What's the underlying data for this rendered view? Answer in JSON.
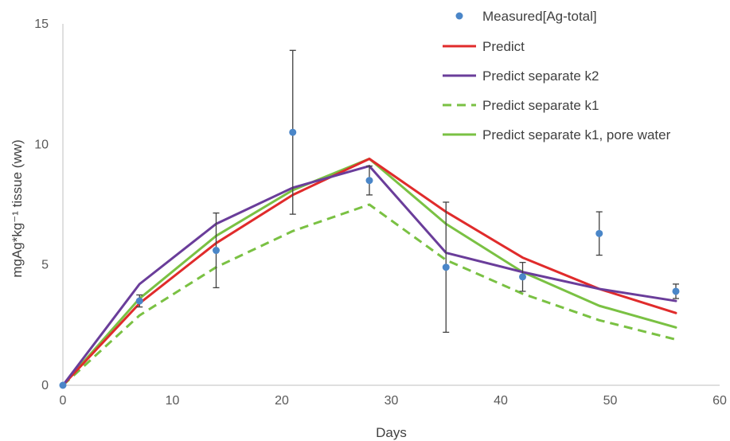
{
  "chart_data": {
    "type": "line",
    "title": "",
    "xlabel": "Days",
    "ylabel": "mgAg*kg⁻¹ tissue (ww)",
    "xlim": [
      0,
      60
    ],
    "ylim": [
      0,
      15
    ],
    "xticks": [
      0,
      10,
      20,
      30,
      40,
      50,
      60
    ],
    "yticks": [
      0,
      5,
      10,
      15
    ],
    "grid": false,
    "legend_position": "top-right",
    "measured": {
      "name": "Measured[Ag-total]",
      "color": "#4a86c8",
      "points": [
        {
          "x": 0,
          "y": 0,
          "err": 0
        },
        {
          "x": 7,
          "y": 3.5,
          "err": 0.25
        },
        {
          "x": 14,
          "y": 5.6,
          "err": 1.55
        },
        {
          "x": 21,
          "y": 10.5,
          "err": 3.4
        },
        {
          "x": 28,
          "y": 8.5,
          "err": 0.6
        },
        {
          "x": 35,
          "y": 4.9,
          "err": 2.7
        },
        {
          "x": 42,
          "y": 4.5,
          "err": 0.6
        },
        {
          "x": 49,
          "y": 6.3,
          "err": 0.9
        },
        {
          "x": 56,
          "y": 3.9,
          "err": 0.3
        }
      ]
    },
    "series": [
      {
        "name": "Predict",
        "color": "#e02b2b",
        "dash": "solid",
        "x": [
          0,
          7,
          14,
          21,
          28,
          35,
          42,
          49,
          56
        ],
        "values": [
          0,
          3.4,
          5.9,
          7.9,
          9.4,
          7.2,
          5.3,
          4.0,
          3.0
        ]
      },
      {
        "name": "Predict separate k2",
        "color": "#6a3d9a",
        "dash": "solid",
        "x": [
          0,
          7,
          14,
          21,
          28,
          35,
          42,
          49,
          56
        ],
        "values": [
          0,
          4.2,
          6.7,
          8.2,
          9.1,
          5.5,
          4.7,
          4.0,
          3.5
        ]
      },
      {
        "name": "Predict separate k1",
        "color": "#7ac143",
        "dash": "dashed",
        "x": [
          0,
          7,
          14,
          21,
          28,
          35,
          42,
          49,
          56
        ],
        "values": [
          0,
          2.9,
          4.9,
          6.4,
          7.5,
          5.2,
          3.8,
          2.7,
          1.9
        ]
      },
      {
        "name": "Predict separate k1, pore water",
        "color": "#7ac143",
        "dash": "solid",
        "x": [
          0,
          7,
          14,
          21,
          28,
          35,
          42,
          49,
          56
        ],
        "values": [
          0,
          3.6,
          6.2,
          8.1,
          9.4,
          6.7,
          4.7,
          3.3,
          2.4
        ]
      }
    ]
  }
}
